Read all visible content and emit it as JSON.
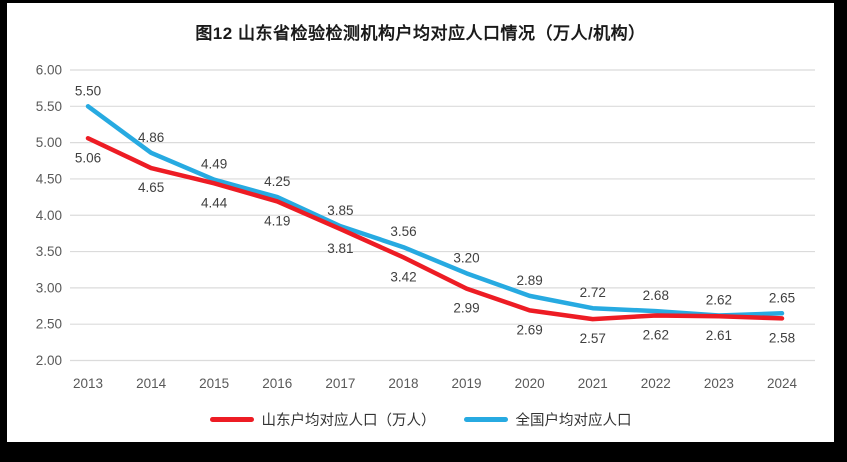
{
  "frame": {
    "border_color": "#000000",
    "card_background": "#ffffff"
  },
  "chart_data": {
    "type": "line",
    "title": "图12 山东省检验检测机构户均对应人口情况（万人/机构）",
    "categories": [
      "2013",
      "2014",
      "2015",
      "2016",
      "2017",
      "2018",
      "2019",
      "2020",
      "2021",
      "2022",
      "2023",
      "2024"
    ],
    "series": [
      {
        "name": "山东户均对应人口（万人）",
        "color": "#ED1C24",
        "label_position": "below",
        "values": [
          5.06,
          4.65,
          4.44,
          4.19,
          3.81,
          3.42,
          2.99,
          2.69,
          2.57,
          2.62,
          2.61,
          2.58
        ]
      },
      {
        "name": "全国户均对应人口",
        "color": "#27AAE1",
        "label_position": "above",
        "values": [
          5.5,
          4.86,
          4.49,
          4.25,
          3.85,
          3.56,
          3.2,
          2.89,
          2.72,
          2.68,
          2.62,
          2.65
        ]
      }
    ],
    "ylim": [
      2.0,
      6.0
    ],
    "ytick_step": 0.5,
    "ytick_decimals": 2,
    "xlabel": "",
    "ylabel": "",
    "grid": "horizontal",
    "legend_position": "bottom",
    "colors": {
      "grid": "#DBDBDB",
      "axis_text": "#595959",
      "data_label": "#404040"
    }
  }
}
